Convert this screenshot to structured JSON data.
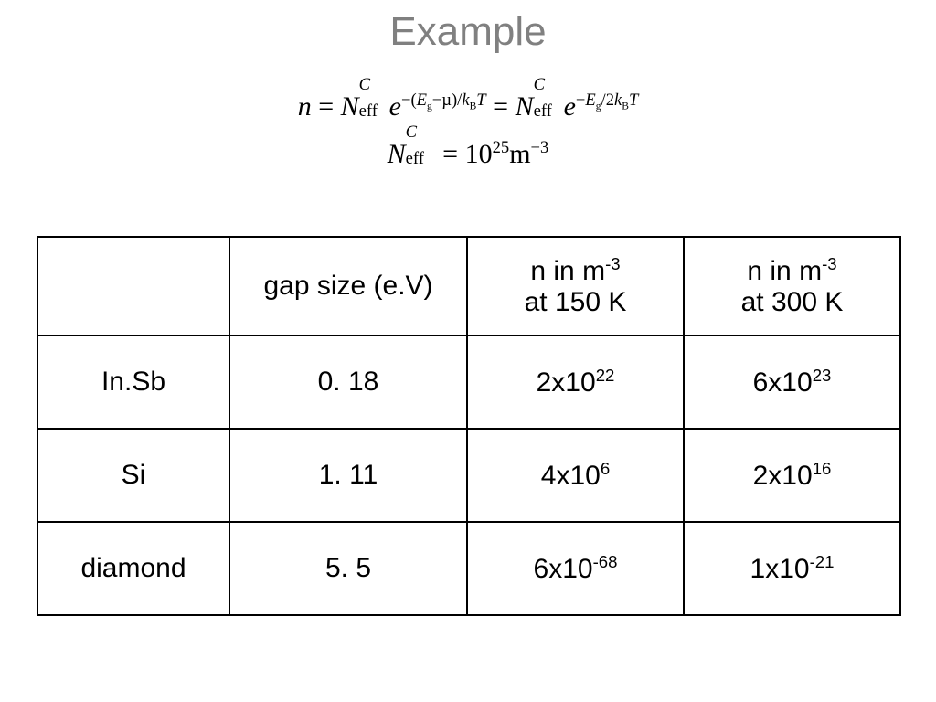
{
  "title": "Example",
  "equations": {
    "line1": {
      "prefix_var": "n",
      "equals": "=",
      "Nvar": "N",
      "Nsub": "eff",
      "Nsup": "C",
      "e": "e",
      "exp1_text": "−(E_g−µ)/k_BT",
      "exp1_minus": "−(",
      "exp1_Eg_E": "E",
      "exp1_Eg_g": "g",
      "exp1_mid": "−µ)/",
      "exp1_k": "k",
      "exp1_B": "B",
      "exp1_T": "T",
      "eq2": "=",
      "exp2_minus": "−",
      "exp2_Eg_E": "E",
      "exp2_Eg_g": "g",
      "exp2_over": "/2",
      "exp2_k": "k",
      "exp2_B": "B",
      "exp2_T": "T"
    },
    "line2": {
      "Nvar": "N",
      "Nsub": "eff",
      "Nsup": "C",
      "equals": "=",
      "ten": "10",
      "ten_exp": "25",
      "unit_m": "m",
      "unit_exp": "−3"
    }
  },
  "table": {
    "headers": {
      "col0": "",
      "col1": "gap size (e.V)",
      "col2_line1_prefix": "n in m",
      "col2_line1_sup": "-3",
      "col2_line2": "at 150 K",
      "col3_line1_prefix": "n in m",
      "col3_line1_sup": "-3",
      "col3_line2": "at 300 K"
    },
    "rows": [
      {
        "material": "In.Sb",
        "gap": "0. 18",
        "n150_base": "2x10",
        "n150_exp": "22",
        "n300_base": "6x10",
        "n300_exp": "23"
      },
      {
        "material": "Si",
        "gap": "1. 11",
        "n150_base": "4x10",
        "n150_exp": "6",
        "n300_base": "2x10",
        "n300_exp": "16"
      },
      {
        "material": "diamond",
        "gap": "5. 5",
        "n150_base": "6x10",
        "n150_exp": "-68",
        "n300_base": "1x10",
        "n300_exp": "-21"
      }
    ]
  },
  "colors": {
    "title": "#808080",
    "text": "#000000",
    "border": "#000000",
    "background": "#ffffff"
  },
  "fonts": {
    "title_size_pt": 33,
    "body_size_pt": 22,
    "equation_family": "Times New Roman"
  }
}
